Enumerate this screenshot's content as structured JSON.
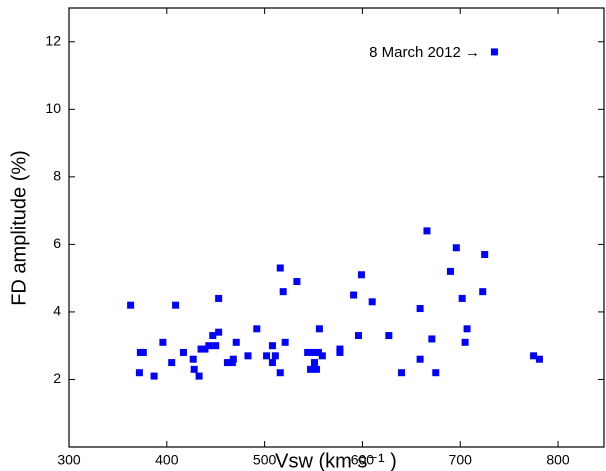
{
  "chart_data": {
    "type": "scatter",
    "x_label": "Vsw (km s⁻¹ )",
    "y_label": "FD amplitude (%)",
    "annotation": "8 March 2012 →",
    "color": "#0000ff",
    "xlim": [
      300,
      847
    ],
    "xticks": [
      300,
      400,
      500,
      600,
      700,
      800
    ],
    "ylim": [
      0,
      13
    ],
    "yticks": [
      2,
      4,
      6,
      8,
      10,
      12
    ],
    "x": [
      363,
      373,
      376,
      372,
      387,
      396,
      405,
      409,
      417,
      427,
      428,
      433,
      435,
      439,
      443,
      447,
      450,
      453,
      453,
      462,
      467,
      468,
      471,
      483,
      492,
      502,
      508,
      508,
      511,
      516,
      516,
      519,
      521,
      533,
      544,
      547,
      550,
      551,
      553,
      555,
      556,
      559,
      577,
      577,
      591,
      596,
      599,
      610,
      627,
      640,
      659,
      659,
      666,
      671,
      675,
      690,
      696,
      702,
      705,
      707,
      723,
      725,
      735,
      775,
      781
    ],
    "values": [
      4.2,
      2.8,
      2.8,
      2.2,
      2.1,
      3.1,
      2.5,
      4.2,
      2.8,
      2.6,
      2.3,
      2.1,
      2.9,
      2.9,
      3.0,
      3.3,
      3.0,
      3.4,
      4.4,
      2.5,
      2.5,
      2.6,
      3.1,
      2.7,
      3.5,
      2.7,
      3.0,
      2.5,
      2.7,
      2.2,
      5.3,
      4.6,
      3.1,
      4.9,
      2.8,
      2.3,
      2.8,
      2.5,
      2.3,
      2.8,
      3.5,
      2.7,
      2.9,
      2.8,
      4.5,
      3.3,
      5.1,
      4.3,
      3.3,
      2.2,
      2.6,
      4.1,
      6.4,
      3.2,
      2.2,
      5.2,
      5.9,
      4.4,
      3.1,
      3.5,
      4.6,
      5.7,
      11.7,
      2.7,
      2.6
    ]
  }
}
